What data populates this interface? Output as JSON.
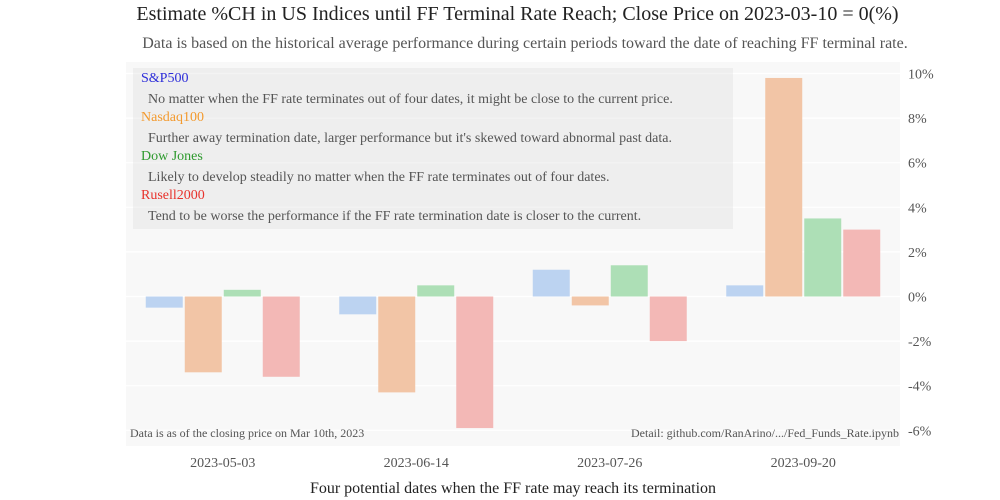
{
  "chart_data": {
    "type": "bar",
    "title": "Estimate %CH in US Indices until FF Terminal Rate Reach; Close Price on 2023-03-10 = 0(%)",
    "subtitle": "Data is based on the historical average performance during certain periods toward the date of reaching FF terminal rate.",
    "xlabel": "Four potential dates when the FF rate may reach its termination",
    "ylabel": "",
    "categories": [
      "2023-05-03",
      "2023-06-14",
      "2023-07-26",
      "2023-09-20"
    ],
    "series": [
      {
        "name": "S&P500",
        "color": "#bcd3f1",
        "label_color": "#2b2bd9",
        "values": [
          -0.5,
          -0.8,
          1.2,
          0.5
        ]
      },
      {
        "name": "Nasdaq100",
        "color": "#f2c5a6",
        "label_color": "#f39a2e",
        "values": [
          -3.4,
          -4.3,
          -0.4,
          9.8
        ]
      },
      {
        "name": "Dow Jones",
        "color": "#addfb6",
        "label_color": "#2e9a2e",
        "values": [
          0.3,
          0.5,
          1.4,
          3.5
        ]
      },
      {
        "name": "Rusell2000",
        "color": "#f3b8b6",
        "label_color": "#e8322c",
        "values": [
          -3.6,
          -5.9,
          -2.0,
          3.0
        ]
      }
    ],
    "yticks": [
      "-6%",
      "-4%",
      "-2%",
      "0%",
      "2%",
      "4%",
      "6%",
      "8%",
      "10%"
    ],
    "ytick_values": [
      -6,
      -4,
      -2,
      0,
      2,
      4,
      6,
      8,
      10
    ],
    "ylim": [
      -6.5,
      10.5
    ],
    "grid": true,
    "y_axis_side": "right",
    "notes": [
      {
        "label": "S&P500",
        "text": "No matter when the FF rate terminates out of four dates, it might be close to the current price."
      },
      {
        "label": "Nasdaq100",
        "text": "Further away termination date, larger performance but it's skewed toward abnormal past data."
      },
      {
        "label": "Dow Jones",
        "text": "Likely to develop steadily no matter when the FF rate terminates out of four dates."
      },
      {
        "label": "Rusell2000",
        "text": "Tend to be worse the performance if the FF rate termination date is closer to the current."
      }
    ],
    "footer_left": "Data is as of the closing price on Mar 10th, 2023",
    "footer_right": "Detail: github.com/RanArino/.../Fed_Funds_Rate.ipynb"
  }
}
